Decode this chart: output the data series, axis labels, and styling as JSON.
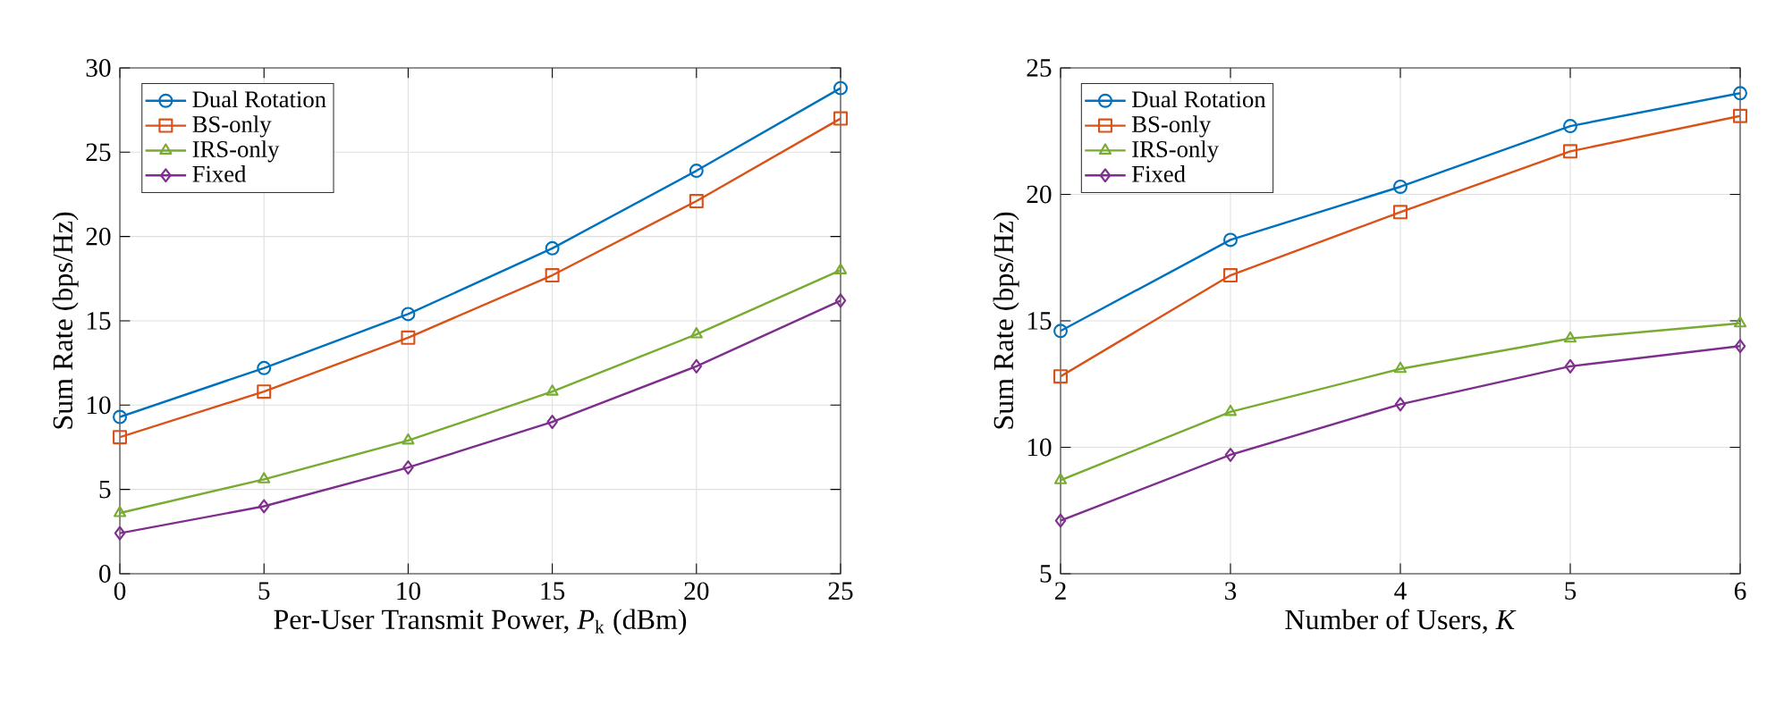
{
  "chart_data": [
    {
      "type": "line",
      "xlabel": "Per-User Transmit Power, *P*$_{k}$ (dBm)",
      "ylabel": "Sum Rate (bps/Hz)",
      "x": [
        0,
        5,
        10,
        15,
        20,
        25
      ],
      "xlim": [
        0,
        25
      ],
      "xticks": [
        0,
        5,
        10,
        15,
        20,
        25
      ],
      "ylim": [
        0,
        30
      ],
      "yticks": [
        0,
        5,
        10,
        15,
        20,
        25,
        30
      ],
      "grid": true,
      "legend": "top left",
      "line_style": "solid",
      "series": [
        {
          "name": "Dual Rotation",
          "color": "#0072bd",
          "marker": "circle",
          "values": [
            9.3,
            12.2,
            15.4,
            19.3,
            23.9,
            28.8
          ]
        },
        {
          "name": "BS-only",
          "color": "#d95319",
          "marker": "square",
          "values": [
            8.1,
            10.8,
            14.0,
            17.7,
            22.1,
            27.0
          ]
        },
        {
          "name": "IRS-only",
          "color": "#77ac30",
          "marker": "triangle",
          "values": [
            3.6,
            5.6,
            7.9,
            10.8,
            14.2,
            18.0
          ]
        },
        {
          "name": "Fixed",
          "color": "#7e2f8e",
          "marker": "diamond",
          "values": [
            2.4,
            4.0,
            6.3,
            9.0,
            12.3,
            16.2
          ]
        }
      ]
    },
    {
      "type": "line",
      "xlabel": "Number of Users, *K*",
      "ylabel": "Sum Rate (bps/Hz)",
      "x": [
        2,
        3,
        4,
        5,
        6
      ],
      "xlim": [
        2,
        6
      ],
      "xticks": [
        2,
        3,
        4,
        5,
        6
      ],
      "ylim": [
        5,
        25
      ],
      "yticks": [
        5,
        10,
        15,
        20,
        25
      ],
      "grid": true,
      "legend": "top left",
      "line_style": "solid",
      "series": [
        {
          "name": "Dual Rotation",
          "color": "#0072bd",
          "marker": "circle",
          "values": [
            14.6,
            18.2,
            20.3,
            22.7,
            24.0
          ]
        },
        {
          "name": "BS-only",
          "color": "#d95319",
          "marker": "square",
          "values": [
            12.8,
            16.8,
            19.3,
            21.7,
            23.1
          ]
        },
        {
          "name": "IRS-only",
          "color": "#77ac30",
          "marker": "triangle",
          "values": [
            8.7,
            11.4,
            13.1,
            14.3,
            14.9
          ]
        },
        {
          "name": "Fixed",
          "color": "#7e2f8e",
          "marker": "diamond",
          "values": [
            7.1,
            9.7,
            11.7,
            13.2,
            14.0
          ]
        }
      ]
    }
  ]
}
